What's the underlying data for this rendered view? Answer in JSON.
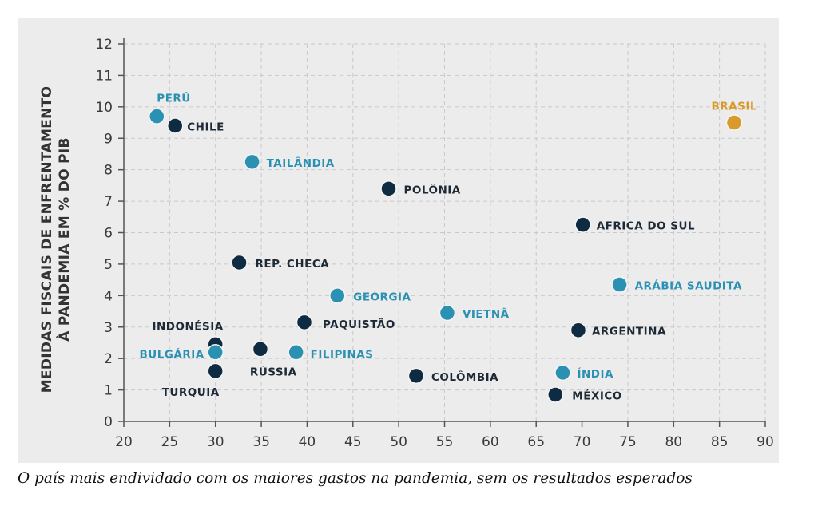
{
  "caption": "O país mais endividado com os maiores gastos na pandemia, sem os resultados esperados",
  "chart_data": {
    "type": "scatter",
    "title": "",
    "xlabel": "",
    "ylabel_lines": [
      "MEDIDAS FISCAIS DE ENFRENTAMENTO",
      "À PANDEMIA EM % DO PIB"
    ],
    "xlim": [
      20,
      90
    ],
    "ylim": [
      0,
      12
    ],
    "xticks": [
      20,
      25,
      30,
      35,
      40,
      45,
      50,
      55,
      60,
      65,
      70,
      75,
      80,
      85,
      90
    ],
    "yticks": [
      0,
      1,
      2,
      3,
      4,
      5,
      6,
      7,
      8,
      9,
      10,
      11,
      12
    ],
    "grid": true,
    "colors": {
      "dark": "#0f2b42",
      "teal": "#2b91b3",
      "highlight": "#d99a2b"
    },
    "points": [
      {
        "label": "PERÚ",
        "x": 23.6,
        "y": 9.7,
        "group": "teal"
      },
      {
        "label": "CHILE",
        "x": 25.6,
        "y": 9.4,
        "group": "dark"
      },
      {
        "label": "TAILÂNDIA",
        "x": 34.0,
        "y": 8.25,
        "group": "teal"
      },
      {
        "label": "POLÔNIA",
        "x": 48.9,
        "y": 7.4,
        "group": "dark"
      },
      {
        "label": "AFRICA DO SUL",
        "x": 70.1,
        "y": 6.25,
        "group": "dark"
      },
      {
        "label": "BRASIL",
        "x": 86.6,
        "y": 9.5,
        "group": "highlight"
      },
      {
        "label": "REP. CHECA",
        "x": 32.6,
        "y": 5.05,
        "group": "dark"
      },
      {
        "label": "ARÁBIA SAUDITA",
        "x": 74.1,
        "y": 4.35,
        "group": "teal"
      },
      {
        "label": "GEÓRGIA",
        "x": 43.3,
        "y": 4.0,
        "group": "teal"
      },
      {
        "label": "VIETNÃ",
        "x": 55.3,
        "y": 3.45,
        "group": "teal"
      },
      {
        "label": "PAQUISTÃO",
        "x": 39.7,
        "y": 3.15,
        "group": "dark"
      },
      {
        "label": "ARGENTINA",
        "x": 69.6,
        "y": 2.9,
        "group": "dark"
      },
      {
        "label": "INDONÉSIA",
        "x": 30.0,
        "y": 2.45,
        "group": "dark"
      },
      {
        "label": "BULGÁRIA",
        "x": 30.0,
        "y": 2.2,
        "group": "teal"
      },
      {
        "label": "RÚSSIA",
        "x": 34.9,
        "y": 2.3,
        "group": "dark"
      },
      {
        "label": "FILIPINAS",
        "x": 38.8,
        "y": 2.2,
        "group": "teal"
      },
      {
        "label": "TURQUIA",
        "x": 30.0,
        "y": 1.6,
        "group": "dark"
      },
      {
        "label": "COLÔMBIA",
        "x": 51.9,
        "y": 1.45,
        "group": "dark"
      },
      {
        "label": "ÍNDIA",
        "x": 67.9,
        "y": 1.55,
        "group": "teal"
      },
      {
        "label": "MÉXICO",
        "x": 67.1,
        "y": 0.85,
        "group": "dark"
      }
    ]
  }
}
